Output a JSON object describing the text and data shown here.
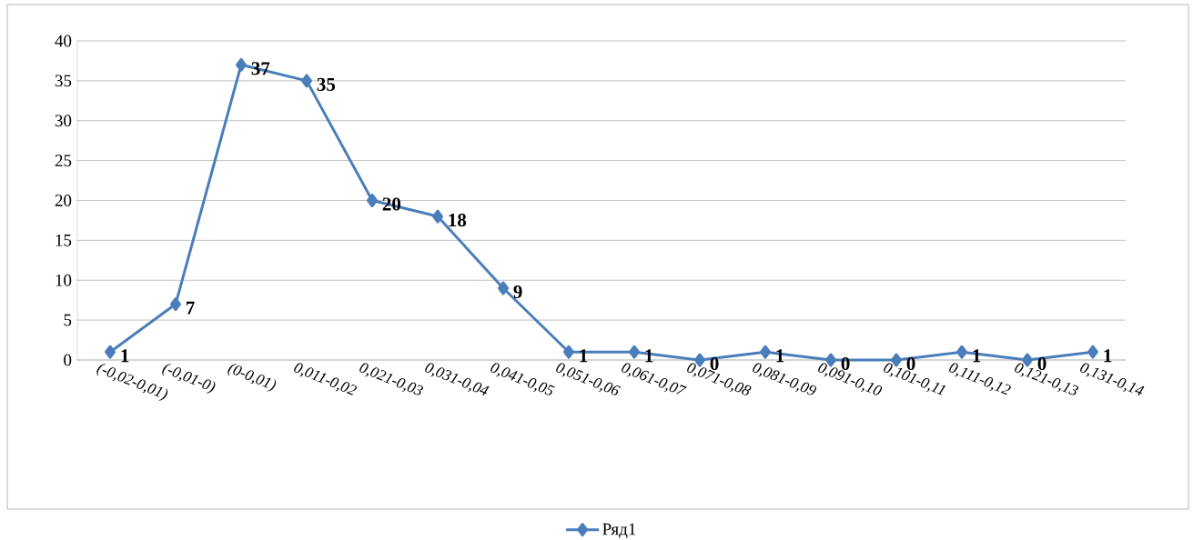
{
  "chart_data": {
    "type": "line",
    "categories": [
      "(-0,02-0,01)",
      "(-0,01-0)",
      "(0-0,01)",
      "0,011-0,02",
      "0,021-0,03",
      "0,031-0,04",
      "0,041-0,05",
      "0,051-0,06",
      "0,061-0,07",
      "0,071-0,08",
      "0,081-0,09",
      "0,091-0,10",
      "0,101-0,11",
      "0,111-0,12",
      "0,121-0,13",
      "0,131-0,14"
    ],
    "series": [
      {
        "name": "Ряд1",
        "color": "#4a7ebb",
        "values": [
          1,
          7,
          37,
          35,
          20,
          18,
          9,
          1,
          1,
          0,
          1,
          0,
          0,
          1,
          0,
          1
        ]
      }
    ],
    "ylim": [
      0,
      40
    ],
    "yticks": [
      0,
      5,
      10,
      15,
      20,
      25,
      30,
      35,
      40
    ],
    "grid": "y",
    "legend": "bottom",
    "marker": "diamond",
    "line_style": "solid",
    "data_labels": true
  }
}
